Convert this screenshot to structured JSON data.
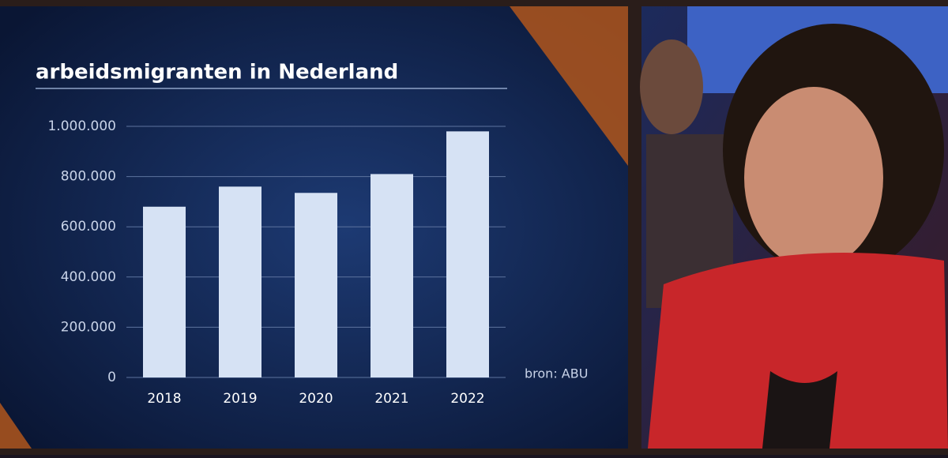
{
  "chart_data": {
    "type": "bar",
    "title": "arbeidsmigranten in Nederland",
    "categories": [
      "2018",
      "2019",
      "2020",
      "2021",
      "2022"
    ],
    "values": [
      680000,
      760000,
      735000,
      810000,
      980000
    ],
    "color": "#d6e2f4",
    "ylim": [
      0,
      1000000
    ],
    "yticks": [
      0,
      {
        "value": 200000,
        "label": "200.000"
      },
      {
        "value": 400000,
        "label": "400.000"
      },
      {
        "value": 600000,
        "label": "600.000"
      },
      {
        "value": 800000,
        "label": "800.000"
      },
      {
        "value": 1000000,
        "label": "1.000.000"
      }
    ],
    "grid": true,
    "source": "bron: ABU"
  }
}
